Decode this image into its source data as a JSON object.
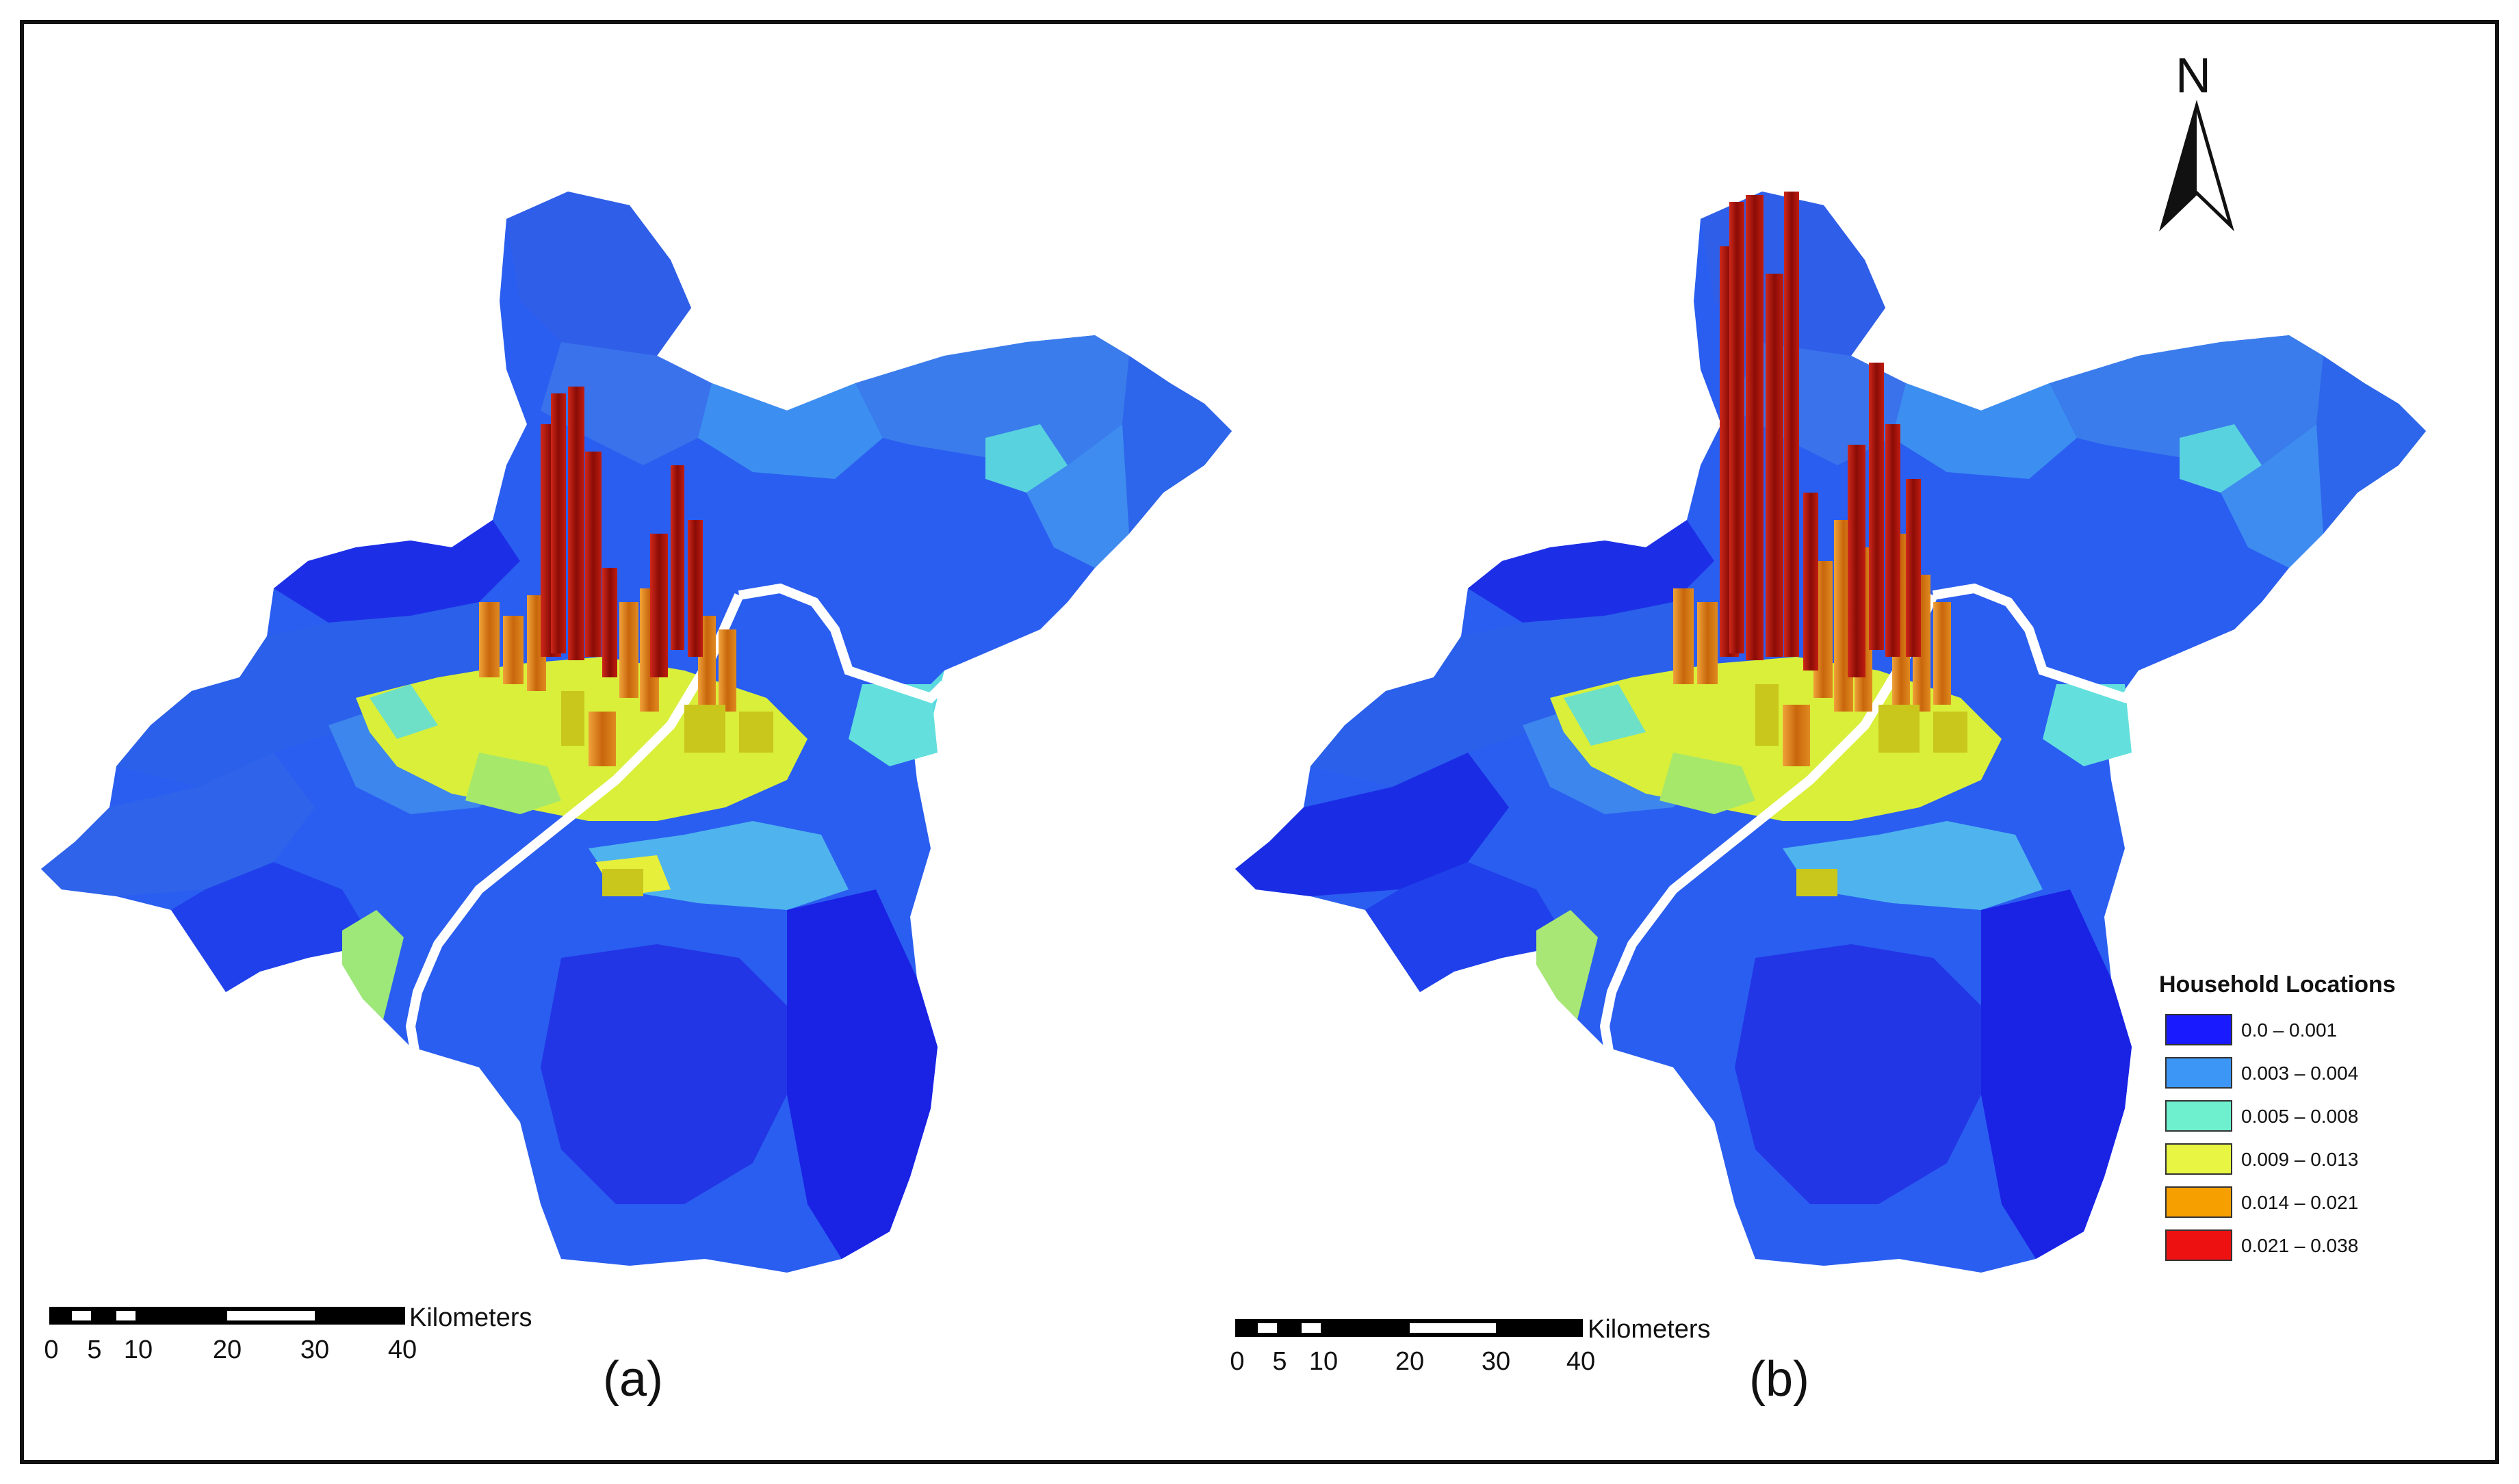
{
  "north_arrow": {
    "label": "N"
  },
  "legend": {
    "title": "Household Locations",
    "items": [
      {
        "label": "0.0 – 0.001",
        "color": "#1a1aff"
      },
      {
        "label": "0.003 – 0.004",
        "color": "#3c96f5"
      },
      {
        "label": "0.005 – 0.008",
        "color": "#6ef0cf"
      },
      {
        "label": "0.009 – 0.013",
        "color": "#e8f542"
      },
      {
        "label": "0.014 – 0.021",
        "color": "#f5a000"
      },
      {
        "label": "0.021 – 0.038",
        "color": "#ee1111"
      }
    ]
  },
  "maps": [
    {
      "caption": "(a)",
      "scale_bar": {
        "unit": "Kilometers",
        "ticks": [
          "0",
          "5",
          "10",
          "20",
          "30",
          "40"
        ]
      }
    },
    {
      "caption": "(b)",
      "scale_bar": {
        "unit": "Kilometers",
        "ticks": [
          "0",
          "5",
          "10",
          "20",
          "30",
          "40"
        ]
      }
    }
  ],
  "river_color": "#ffffff",
  "bar_colors": {
    "high": "#a0160a",
    "mid": "#d97a10",
    "low": "#c9c61c"
  }
}
